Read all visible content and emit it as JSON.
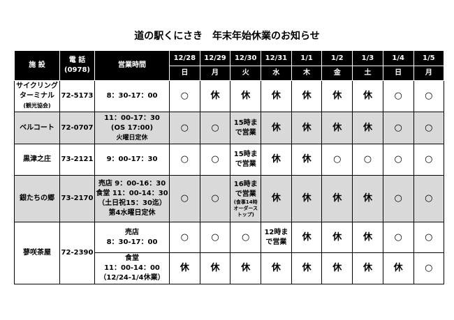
{
  "title": "道の駅くにさき　年末年始休業のお知らせ",
  "headers": {
    "facility": "施 設",
    "phone": "電 話",
    "phone_area": "(0978)",
    "hours": "営業時間"
  },
  "dates": [
    "12/28",
    "12/29",
    "12/30",
    "12/31",
    "1/1",
    "1/2",
    "1/3",
    "1/4",
    "1/5"
  ],
  "weekdays": [
    "日",
    "月",
    "火",
    "水",
    "木",
    "金",
    "土",
    "日",
    "月"
  ],
  "rows": [
    {
      "facility": [
        "サイクリング",
        "ターミナル",
        "(観光協会)"
      ],
      "phone": "72-5173",
      "hours": [
        "8：30-17：00"
      ],
      "status": [
        "○",
        "休",
        "休",
        "休",
        "休",
        "休",
        "休",
        "○",
        "○"
      ]
    },
    {
      "facility": [
        "ベルコート"
      ],
      "phone": "72-0707",
      "hours": [
        "11：00-17：30",
        "(OS 17:00)",
        "火曜日定休"
      ],
      "status": [
        "○",
        "○",
        "15時まで営業",
        "休",
        "休",
        "休",
        "休",
        "○",
        "○"
      ]
    },
    {
      "facility": [
        "黒津之庄"
      ],
      "phone": "73-2121",
      "hours": [
        "9：00-17：30"
      ],
      "status": [
        "○",
        "○",
        "15時まで営業",
        "休",
        "休",
        "○",
        "○",
        "○",
        "○"
      ]
    },
    {
      "facility": [
        "銀たちの郷"
      ],
      "phone": "73-2170",
      "hours": [
        "売店 9：00-16：30",
        "食堂 11：00-14：30",
        "（土日祝15：30迄）",
        "第4水曜日定休"
      ],
      "status": [
        "○",
        "○",
        "16時まで営業",
        "休",
        "休",
        "休",
        "休",
        "○",
        "○"
      ],
      "status_note": "(食事14時オーダーストップ)"
    },
    {
      "facility": [
        "蓼咲茶屋"
      ],
      "phone": "72-2390",
      "hours": [
        "売店",
        "8：30-17：00"
      ],
      "status": [
        "○",
        "○",
        "○",
        "12時まで営業",
        "休",
        "休",
        "休",
        "○",
        "○"
      ]
    },
    {
      "hours": [
        "食堂",
        "11：00-14：00",
        "（12/24-1/4休業）"
      ],
      "status": [
        "休",
        "休",
        "休",
        "休",
        "休",
        "休",
        "休",
        "休",
        "○"
      ]
    }
  ]
}
